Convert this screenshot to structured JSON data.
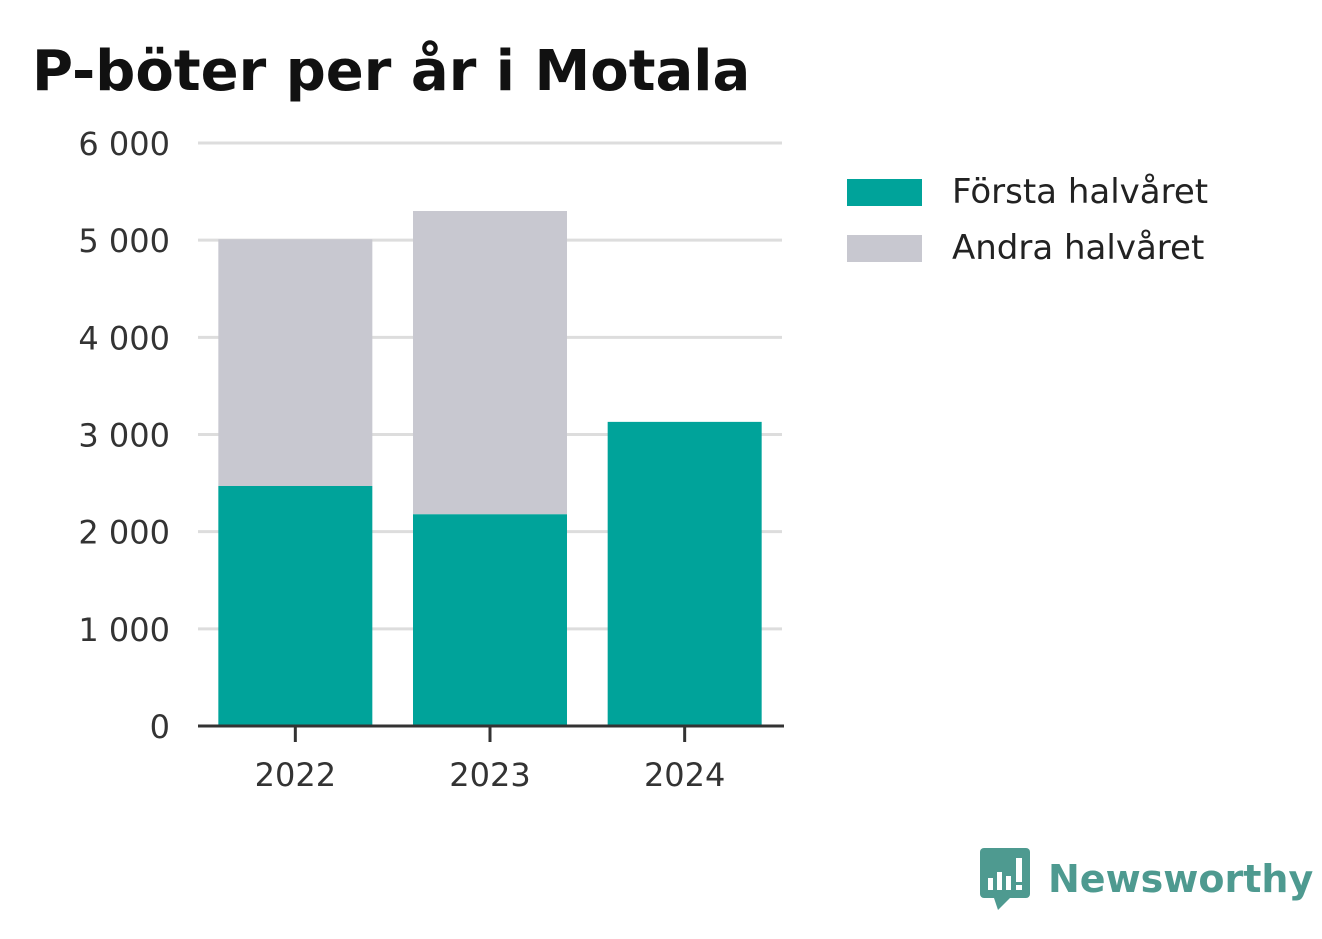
{
  "title": "P-böter per år i Motala",
  "chart_data": {
    "type": "bar",
    "stacked": true,
    "title": "P-böter per år i Motala",
    "xlabel": "",
    "ylabel": "",
    "categories": [
      "2022",
      "2023",
      "2024"
    ],
    "series": [
      {
        "name": "Första halvåret",
        "color": "#00a39a",
        "values": [
          2470,
          2180,
          3130
        ]
      },
      {
        "name": "Andra halvåret",
        "color": "#c8c8d0",
        "values": [
          2540,
          3120,
          0
        ]
      }
    ],
    "ylim": [
      0,
      6000
    ],
    "yticks": [
      0,
      1000,
      2000,
      3000,
      4000,
      5000,
      6000
    ],
    "ytick_labels": [
      "0",
      "1 000",
      "2 000",
      "3 000",
      "4 000",
      "5 000",
      "6 000"
    ],
    "grid": true,
    "legend_position": "right"
  },
  "brand": {
    "name": "Newsworthy",
    "icon": "newsworthy-logo-icon",
    "color": "#4e9a90"
  }
}
